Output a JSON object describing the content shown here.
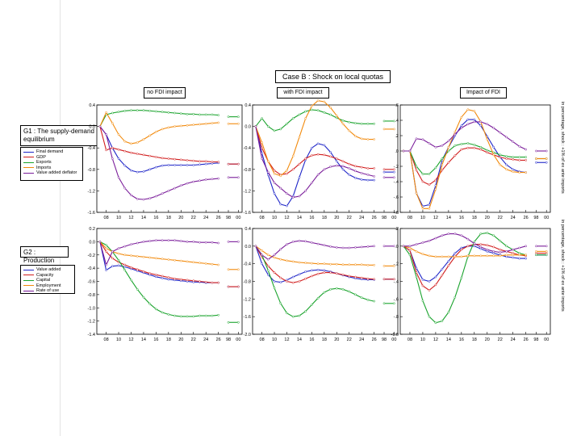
{
  "title": "Case B : Shock on local quotas",
  "column_titles": [
    "no FDI impact",
    "with FDI impact",
    "Impact of FDI"
  ],
  "sections": [
    {
      "label": "G1 : The supply-demand equilibrium",
      "legend": [
        "Final demand",
        "GDP",
        "Exports",
        "Imports",
        "Value added deflator"
      ],
      "side_label": "in percentage, shock : +1% of ex ante imports"
    },
    {
      "label": "G2 : Production",
      "legend": [
        "Value added",
        "Capacity",
        "Capital",
        "Employment",
        "Rate of use"
      ],
      "side_label": "in percentage, shock : +1% of ex ante imports"
    }
  ],
  "colors": {
    "G1": [
      "#1f26c8",
      "#d11d1d",
      "#19a32c",
      "#f28a0c",
      "#7a1c9a"
    ],
    "G2": [
      "#1f26c8",
      "#d11d1d",
      "#19a32c",
      "#f28a0c",
      "#7a1c9a"
    ]
  },
  "chart_data": [
    {
      "type": "line",
      "row": "G1",
      "title": "no FDI impact",
      "x": [
        7,
        8,
        9,
        10,
        11,
        12,
        13,
        14,
        15,
        16,
        17,
        18,
        19,
        20,
        21,
        22,
        23,
        24,
        25,
        26
      ],
      "xticks": [
        "08",
        "10",
        "12",
        "14",
        "16",
        "18",
        "20",
        "22",
        "24",
        "26",
        "98",
        "00"
      ],
      "ylim": [
        -1.6,
        0.4
      ],
      "yticks": [
        "0.4",
        "0.0",
        "-0.4",
        "-0.8",
        "-1.2",
        "-1.6"
      ],
      "series": [
        {
          "name": "Final demand",
          "values": [
            0.0,
            -0.15,
            -0.4,
            -0.6,
            -0.73,
            -0.82,
            -0.85,
            -0.84,
            -0.8,
            -0.76,
            -0.73,
            -0.72,
            -0.72,
            -0.72,
            -0.72,
            -0.72,
            -0.71,
            -0.7,
            -0.69,
            -0.68
          ],
          "end": -0.7
        },
        {
          "name": "GDP",
          "values": [
            0.0,
            -0.44,
            -0.4,
            -0.43,
            -0.46,
            -0.49,
            -0.51,
            -0.53,
            -0.55,
            -0.57,
            -0.59,
            -0.6,
            -0.61,
            -0.62,
            -0.63,
            -0.64,
            -0.65,
            -0.65,
            -0.66,
            -0.66
          ],
          "end": -0.7
        },
        {
          "name": "Exports",
          "values": [
            0.0,
            0.22,
            0.25,
            0.27,
            0.29,
            0.3,
            0.3,
            0.3,
            0.29,
            0.28,
            0.27,
            0.26,
            0.25,
            0.24,
            0.23,
            0.23,
            0.22,
            0.22,
            0.22,
            0.21
          ],
          "end": 0.18
        },
        {
          "name": "Imports",
          "values": [
            0.0,
            0.26,
            0.06,
            -0.15,
            -0.28,
            -0.32,
            -0.3,
            -0.24,
            -0.17,
            -0.1,
            -0.05,
            -0.02,
            0.0,
            0.01,
            0.02,
            0.03,
            0.04,
            0.05,
            0.06,
            0.07
          ],
          "end": 0.05
        },
        {
          "name": "Value added deflator",
          "values": [
            0.0,
            -0.15,
            -0.6,
            -0.95,
            -1.15,
            -1.28,
            -1.35,
            -1.36,
            -1.34,
            -1.3,
            -1.25,
            -1.2,
            -1.15,
            -1.1,
            -1.06,
            -1.03,
            -1.01,
            -0.99,
            -0.98,
            -0.97
          ],
          "end": -0.95
        }
      ]
    },
    {
      "type": "line",
      "row": "G1",
      "title": "with FDI impact",
      "x": [
        7,
        8,
        9,
        10,
        11,
        12,
        13,
        14,
        15,
        16,
        17,
        18,
        19,
        20,
        21,
        22,
        23,
        24,
        25,
        26
      ],
      "xticks": [
        "08",
        "10",
        "12",
        "14",
        "16",
        "18",
        "20",
        "22",
        "24",
        "26",
        "98",
        "00"
      ],
      "ylim": [
        -1.6,
        0.4
      ],
      "yticks": [
        "0.4",
        "0.0",
        "-0.4",
        "-0.8",
        "-1.2",
        "-1.6"
      ],
      "series": [
        {
          "name": "Final demand",
          "values": [
            0.0,
            -0.5,
            -0.9,
            -1.25,
            -1.45,
            -1.48,
            -1.3,
            -0.95,
            -0.62,
            -0.4,
            -0.32,
            -0.35,
            -0.48,
            -0.65,
            -0.8,
            -0.9,
            -0.96,
            -0.99,
            -1.0,
            -1.0
          ],
          "end": -0.85
        },
        {
          "name": "GDP",
          "values": [
            0.0,
            -0.4,
            -0.65,
            -0.82,
            -0.9,
            -0.88,
            -0.8,
            -0.7,
            -0.6,
            -0.54,
            -0.52,
            -0.53,
            -0.56,
            -0.6,
            -0.65,
            -0.7,
            -0.74,
            -0.76,
            -0.78,
            -0.78
          ],
          "end": -0.8
        },
        {
          "name": "Exports",
          "values": [
            0.0,
            0.15,
            0.0,
            -0.08,
            -0.05,
            0.05,
            0.15,
            0.22,
            0.28,
            0.31,
            0.3,
            0.26,
            0.22,
            0.16,
            0.11,
            0.08,
            0.06,
            0.05,
            0.05,
            0.05
          ],
          "end": 0.1
        },
        {
          "name": "Imports",
          "values": [
            0.0,
            -0.3,
            -0.65,
            -0.88,
            -0.92,
            -0.82,
            -0.55,
            -0.2,
            0.15,
            0.38,
            0.48,
            0.46,
            0.35,
            0.2,
            0.05,
            -0.08,
            -0.18,
            -0.23,
            -0.24,
            -0.24
          ],
          "end": -0.05
        },
        {
          "name": "Value added deflator",
          "values": [
            0.0,
            -0.6,
            -0.85,
            -1.05,
            -1.15,
            -1.25,
            -1.32,
            -1.3,
            -1.2,
            -1.05,
            -0.9,
            -0.8,
            -0.75,
            -0.73,
            -0.74,
            -0.78,
            -0.83,
            -0.87,
            -0.9,
            -0.93
          ],
          "end": -0.95
        }
      ]
    },
    {
      "type": "line",
      "row": "G1",
      "title": "Impact of FDI",
      "x": [
        7,
        8,
        9,
        10,
        11,
        12,
        13,
        14,
        15,
        16,
        17,
        18,
        19,
        20,
        21,
        22,
        23,
        24,
        25,
        26
      ],
      "xticks": [
        "08",
        "10",
        "12",
        "14",
        "16",
        "18",
        "20",
        "22",
        "24",
        "26",
        "98",
        "00"
      ],
      "ylim": [
        -0.8,
        0.6
      ],
      "yticks": [
        ".6",
        ".4",
        ".2",
        ".0",
        "-.2",
        "-.4",
        "-.6",
        "-.8"
      ],
      "series": [
        {
          "name": "Final demand",
          "values": [
            0.0,
            0.0,
            -0.55,
            -0.72,
            -0.7,
            -0.45,
            -0.12,
            0.05,
            0.2,
            0.33,
            0.41,
            0.41,
            0.33,
            0.19,
            0.05,
            -0.08,
            -0.18,
            -0.24,
            -0.27,
            -0.28
          ],
          "end": -0.15
        },
        {
          "name": "GDP",
          "values": [
            0.0,
            0.0,
            -0.25,
            -0.4,
            -0.44,
            -0.38,
            -0.25,
            -0.15,
            -0.06,
            0.02,
            0.04,
            0.04,
            0.02,
            -0.02,
            -0.05,
            -0.08,
            -0.1,
            -0.11,
            -0.12,
            -0.12
          ],
          "end": -0.1
        },
        {
          "name": "Exports",
          "values": [
            0.0,
            0.0,
            -0.2,
            -0.3,
            -0.3,
            -0.22,
            -0.1,
            0.0,
            0.07,
            0.09,
            0.1,
            0.08,
            0.05,
            0.01,
            -0.02,
            -0.05,
            -0.07,
            -0.08,
            -0.08,
            -0.08
          ],
          "end": -0.1
        },
        {
          "name": "Imports",
          "values": [
            0.0,
            0.0,
            -0.55,
            -0.75,
            -0.75,
            -0.5,
            -0.18,
            0.05,
            0.25,
            0.44,
            0.54,
            0.52,
            0.38,
            0.15,
            -0.05,
            -0.18,
            -0.24,
            -0.27,
            -0.28,
            -0.28
          ],
          "end": -0.1
        },
        {
          "name": "Value added deflator",
          "values": [
            0.0,
            0.0,
            0.16,
            0.15,
            0.1,
            0.05,
            0.07,
            0.13,
            0.22,
            0.3,
            0.35,
            0.38,
            0.38,
            0.35,
            0.3,
            0.24,
            0.18,
            0.12,
            0.06,
            0.02
          ],
          "end": 0.0
        }
      ]
    },
    {
      "type": "line",
      "row": "G2",
      "title": "no FDI impact",
      "x": [
        7,
        8,
        9,
        10,
        11,
        12,
        13,
        14,
        15,
        16,
        17,
        18,
        19,
        20,
        21,
        22,
        23,
        24,
        25,
        26
      ],
      "xticks": [
        "08",
        "10",
        "12",
        "14",
        "16",
        "18",
        "20",
        "22",
        "24",
        "26",
        "98",
        "00"
      ],
      "ylim": [
        -1.4,
        0.2
      ],
      "yticks": [
        "0.2",
        "0.0",
        "-0.2",
        "-0.4",
        "-0.6",
        "-0.8",
        "-1.0",
        "-1.2",
        "-1.4"
      ],
      "series": [
        {
          "name": "Value added",
          "values": [
            0.0,
            -0.43,
            -0.37,
            -0.36,
            -0.38,
            -0.41,
            -0.44,
            -0.47,
            -0.5,
            -0.53,
            -0.55,
            -0.57,
            -0.58,
            -0.59,
            -0.6,
            -0.61,
            -0.61,
            -0.62,
            -0.62,
            -0.62
          ],
          "end": -0.68
        },
        {
          "name": "Capacity",
          "values": [
            0.0,
            -0.15,
            -0.25,
            -0.31,
            -0.35,
            -0.39,
            -0.42,
            -0.45,
            -0.48,
            -0.5,
            -0.52,
            -0.54,
            -0.56,
            -0.57,
            -0.58,
            -0.59,
            -0.6,
            -0.61,
            -0.62,
            -0.62
          ],
          "end": -0.68
        },
        {
          "name": "Capital",
          "values": [
            0.0,
            -0.05,
            -0.15,
            -0.28,
            -0.43,
            -0.58,
            -0.72,
            -0.84,
            -0.94,
            -1.02,
            -1.07,
            -1.1,
            -1.12,
            -1.13,
            -1.13,
            -1.13,
            -1.12,
            -1.12,
            -1.12,
            -1.11
          ],
          "end": -1.22
        },
        {
          "name": "Employment",
          "values": [
            0.0,
            -0.1,
            -0.15,
            -0.18,
            -0.2,
            -0.21,
            -0.22,
            -0.23,
            -0.24,
            -0.25,
            -0.26,
            -0.27,
            -0.28,
            -0.29,
            -0.3,
            -0.31,
            -0.32,
            -0.33,
            -0.34,
            -0.35
          ],
          "end": -0.42
        },
        {
          "name": "Rate of use",
          "values": [
            0.0,
            -0.35,
            -0.15,
            -0.1,
            -0.07,
            -0.04,
            -0.02,
            0.0,
            0.01,
            0.02,
            0.02,
            0.02,
            0.02,
            0.01,
            0.0,
            0.0,
            -0.01,
            -0.01,
            -0.01,
            -0.02
          ],
          "end": 0.0
        }
      ]
    },
    {
      "type": "line",
      "row": "G2",
      "title": "with FDI impact",
      "x": [
        7,
        8,
        9,
        10,
        11,
        12,
        13,
        14,
        15,
        16,
        17,
        18,
        19,
        20,
        21,
        22,
        23,
        24,
        25,
        26
      ],
      "xticks": [
        "08",
        "10",
        "12",
        "14",
        "16",
        "18",
        "20",
        "22",
        "24",
        "26",
        "98",
        "00"
      ],
      "ylim": [
        -2.0,
        0.4
      ],
      "yticks": [
        "0.4",
        "0.0",
        "-0.4",
        "-0.8",
        "-1.2",
        "-1.6",
        "-2.0"
      ],
      "series": [
        {
          "name": "Value added",
          "values": [
            0.0,
            -0.4,
            -0.65,
            -0.8,
            -0.82,
            -0.77,
            -0.7,
            -0.64,
            -0.58,
            -0.55,
            -0.54,
            -0.55,
            -0.58,
            -0.62,
            -0.66,
            -0.7,
            -0.73,
            -0.75,
            -0.76,
            -0.76
          ],
          "end": -0.75
        },
        {
          "name": "Capacity",
          "values": [
            0.0,
            -0.25,
            -0.45,
            -0.6,
            -0.72,
            -0.8,
            -0.83,
            -0.8,
            -0.74,
            -0.68,
            -0.63,
            -0.6,
            -0.6,
            -0.62,
            -0.65,
            -0.68,
            -0.7,
            -0.72,
            -0.74,
            -0.75
          ],
          "end": -0.75
        },
        {
          "name": "Capital",
          "values": [
            0.0,
            -0.2,
            -0.55,
            -0.95,
            -1.3,
            -1.52,
            -1.6,
            -1.58,
            -1.48,
            -1.33,
            -1.18,
            -1.05,
            -0.98,
            -0.96,
            -0.98,
            -1.03,
            -1.1,
            -1.17,
            -1.22,
            -1.25
          ],
          "end": -1.3
        },
        {
          "name": "Employment",
          "values": [
            0.0,
            -0.1,
            -0.2,
            -0.26,
            -0.3,
            -0.33,
            -0.35,
            -0.37,
            -0.38,
            -0.39,
            -0.4,
            -0.4,
            -0.41,
            -0.41,
            -0.42,
            -0.42,
            -0.42,
            -0.42,
            -0.43,
            -0.43
          ],
          "end": -0.45
        },
        {
          "name": "Rate of use",
          "values": [
            0.0,
            -0.2,
            -0.3,
            -0.2,
            -0.07,
            0.04,
            0.1,
            0.12,
            0.11,
            0.08,
            0.05,
            0.02,
            -0.01,
            -0.03,
            -0.04,
            -0.04,
            -0.03,
            -0.02,
            -0.01,
            0.0
          ],
          "end": 0.0
        }
      ]
    },
    {
      "type": "line",
      "row": "G2",
      "title": "Impact of FDI",
      "x": [
        7,
        8,
        9,
        10,
        11,
        12,
        13,
        14,
        15,
        16,
        17,
        18,
        19,
        20,
        21,
        22,
        23,
        24,
        25,
        26
      ],
      "xticks": [
        "08",
        "10",
        "12",
        "14",
        "16",
        "18",
        "20",
        "22",
        "24",
        "26",
        "98",
        "00"
      ],
      "ylim": [
        -1.0,
        0.2
      ],
      "yticks": [
        ".2",
        ".0",
        "-.2",
        "-.4",
        "-.6",
        "-.8",
        "-1.0"
      ],
      "series": [
        {
          "name": "Value added",
          "values": [
            0.0,
            -0.05,
            -0.25,
            -0.38,
            -0.4,
            -0.35,
            -0.26,
            -0.17,
            -0.08,
            -0.02,
            0.0,
            0.0,
            -0.03,
            -0.06,
            -0.08,
            -0.1,
            -0.12,
            -0.13,
            -0.14,
            -0.14
          ],
          "end": -0.1
        },
        {
          "name": "Capacity",
          "values": [
            0.0,
            -0.05,
            -0.3,
            -0.45,
            -0.5,
            -0.44,
            -0.33,
            -0.22,
            -0.12,
            -0.04,
            0.0,
            0.02,
            0.02,
            0.01,
            -0.01,
            -0.04,
            -0.06,
            -0.08,
            -0.1,
            -0.11
          ],
          "end": -0.08
        },
        {
          "name": "Capital",
          "values": [
            0.0,
            -0.1,
            -0.35,
            -0.62,
            -0.8,
            -0.87,
            -0.85,
            -0.75,
            -0.58,
            -0.36,
            -0.12,
            0.05,
            0.14,
            0.15,
            0.12,
            0.06,
            0.0,
            -0.04,
            -0.08,
            -0.1
          ],
          "end": -0.1
        },
        {
          "name": "Employment",
          "values": [
            0.0,
            -0.02,
            -0.06,
            -0.09,
            -0.11,
            -0.12,
            -0.12,
            -0.12,
            -0.12,
            -0.12,
            -0.11,
            -0.11,
            -0.11,
            -0.11,
            -0.11,
            -0.11,
            -0.1,
            -0.1,
            -0.1,
            -0.1
          ],
          "end": -0.06
        },
        {
          "name": "Rate of use",
          "values": [
            0.0,
            0.0,
            0.02,
            0.04,
            0.06,
            0.09,
            0.12,
            0.14,
            0.14,
            0.12,
            0.08,
            0.03,
            -0.01,
            -0.04,
            -0.06,
            -0.07,
            -0.06,
            -0.04,
            -0.02,
            0.0
          ],
          "end": 0.0
        }
      ]
    }
  ]
}
